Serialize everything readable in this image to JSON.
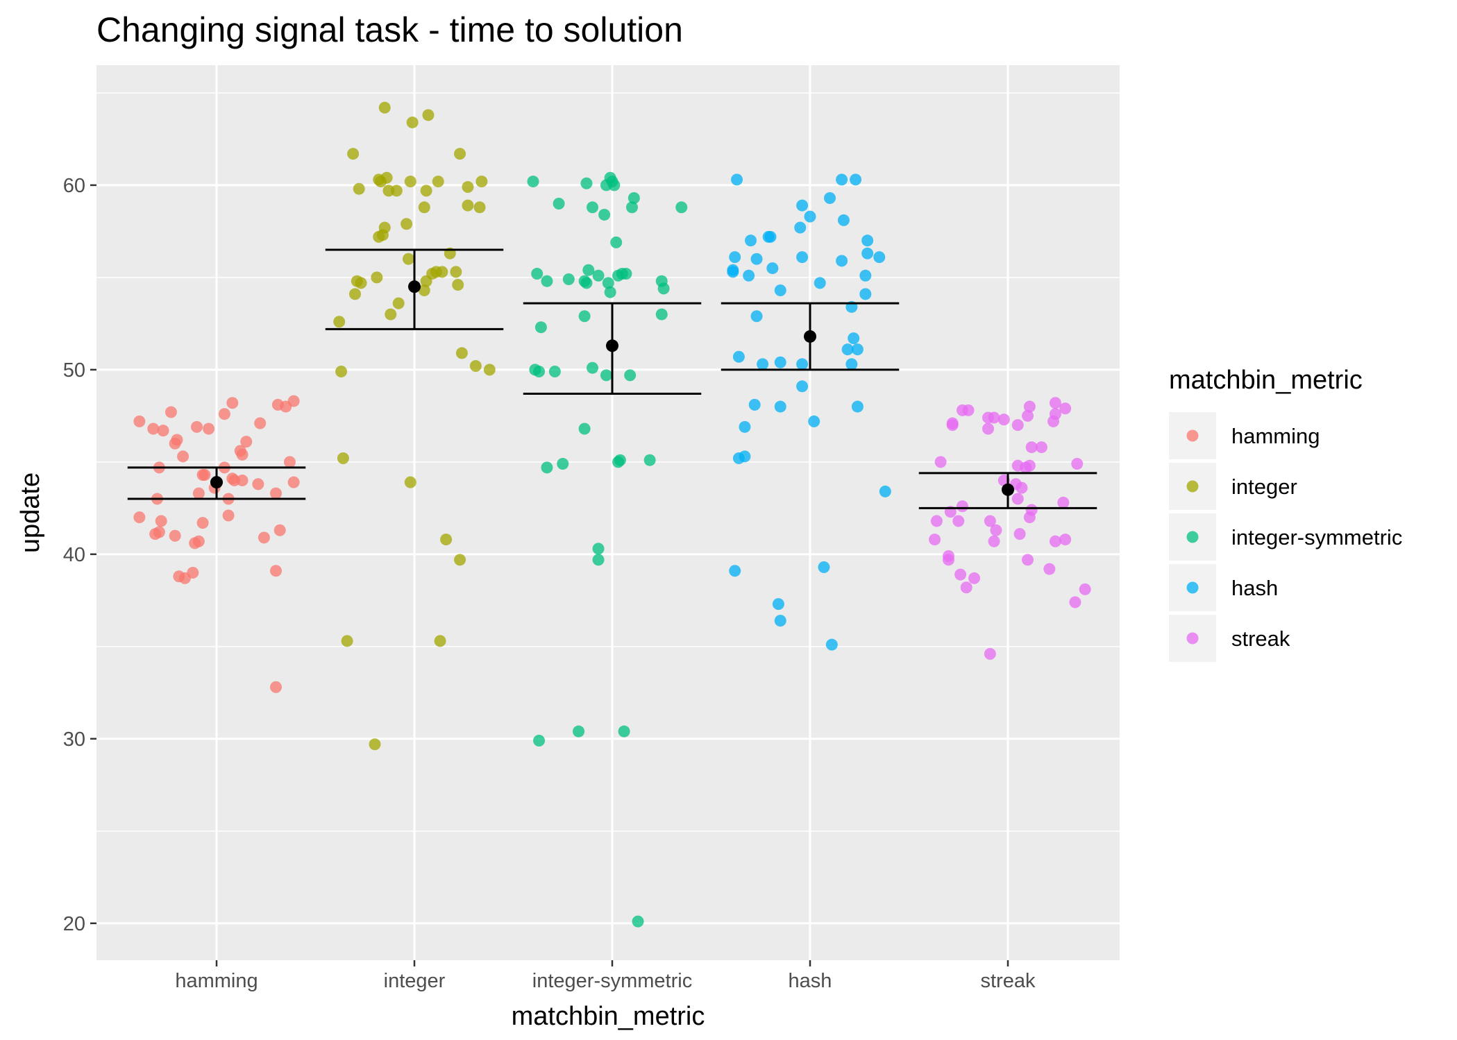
{
  "chart_data": {
    "type": "scatter",
    "title": "Changing signal task - time to solution",
    "xlabel": "matchbin_metric",
    "ylabel": "update",
    "categories": [
      "hamming",
      "integer",
      "integer-symmetric",
      "hash",
      "streak"
    ],
    "ylim": [
      18,
      66.5
    ],
    "yticks": [
      20,
      30,
      40,
      50,
      60
    ],
    "grid": true,
    "legend": {
      "title": "matchbin_metric",
      "placement": "right",
      "entries": [
        "hamming",
        "integer",
        "integer-symmetric",
        "hash",
        "streak"
      ]
    },
    "colors": {
      "hamming": "#F8766D",
      "integer": "#A3A500",
      "integer-symmetric": "#00BF7D",
      "hash": "#00B0F6",
      "streak": "#E76BF3",
      "panel": "#EBEBEB",
      "summary": "#000000"
    },
    "series": [
      {
        "name": "hamming",
        "mean": 43.9,
        "ci": [
          43.0,
          44.7
        ],
        "points": [
          [
            -0.39,
            47.2
          ],
          [
            -0.32,
            46.8
          ],
          [
            -0.27,
            46.7
          ],
          [
            -0.23,
            47.7
          ],
          [
            -0.2,
            46.2
          ],
          [
            -0.21,
            46.0
          ],
          [
            -0.17,
            45.3
          ],
          [
            -0.1,
            46.9
          ],
          [
            -0.04,
            46.8
          ],
          [
            0.04,
            47.6
          ],
          [
            0.08,
            48.2
          ],
          [
            0.22,
            47.1
          ],
          [
            0.31,
            48.1
          ],
          [
            0.35,
            48.0
          ],
          [
            0.39,
            48.3
          ],
          [
            0.15,
            46.1
          ],
          [
            0.12,
            45.6
          ],
          [
            0.13,
            45.4
          ],
          [
            -0.29,
            44.7
          ],
          [
            -0.07,
            44.3
          ],
          [
            -0.06,
            44.3
          ],
          [
            0.04,
            44.7
          ],
          [
            0.08,
            44.1
          ],
          [
            0.09,
            44.0
          ],
          [
            0.13,
            44.0
          ],
          [
            0.21,
            43.8
          ],
          [
            0.37,
            45.0
          ],
          [
            0.39,
            43.9
          ],
          [
            -0.01,
            43.6
          ],
          [
            -0.09,
            43.3
          ],
          [
            -0.3,
            43.0
          ],
          [
            0.06,
            43.0
          ],
          [
            0.3,
            43.3
          ],
          [
            -0.39,
            42.0
          ],
          [
            -0.28,
            41.8
          ],
          [
            -0.29,
            41.2
          ],
          [
            -0.21,
            41.0
          ],
          [
            -0.31,
            41.1
          ],
          [
            -0.07,
            41.7
          ],
          [
            0.06,
            42.1
          ],
          [
            0.32,
            41.3
          ],
          [
            0.24,
            40.9
          ],
          [
            -0.09,
            40.7
          ],
          [
            -0.11,
            40.6
          ],
          [
            -0.19,
            38.8
          ],
          [
            -0.16,
            38.7
          ],
          [
            -0.12,
            39.0
          ],
          [
            0.3,
            39.1
          ],
          [
            0.3,
            32.8
          ]
        ]
      },
      {
        "name": "integer",
        "mean": 54.5,
        "ci": [
          52.2,
          56.5
        ],
        "points": [
          [
            -0.31,
            61.7
          ],
          [
            -0.15,
            64.2
          ],
          [
            -0.01,
            63.4
          ],
          [
            0.07,
            63.8
          ],
          [
            0.23,
            61.7
          ],
          [
            -0.18,
            60.3
          ],
          [
            -0.17,
            60.2
          ],
          [
            -0.14,
            60.4
          ],
          [
            -0.09,
            59.7
          ],
          [
            -0.13,
            59.7
          ],
          [
            -0.02,
            60.2
          ],
          [
            0.06,
            59.7
          ],
          [
            0.12,
            60.2
          ],
          [
            0.27,
            59.9
          ],
          [
            0.34,
            60.2
          ],
          [
            -0.28,
            59.8
          ],
          [
            -0.18,
            57.2
          ],
          [
            -0.16,
            57.3
          ],
          [
            -0.15,
            57.7
          ],
          [
            -0.04,
            57.9
          ],
          [
            0.05,
            58.8
          ],
          [
            0.27,
            58.9
          ],
          [
            0.33,
            58.8
          ],
          [
            -0.03,
            56.0
          ],
          [
            0.18,
            56.3
          ],
          [
            -0.29,
            54.8
          ],
          [
            -0.27,
            54.7
          ],
          [
            -0.19,
            55.0
          ],
          [
            0.06,
            54.8
          ],
          [
            0.09,
            55.2
          ],
          [
            0.11,
            55.3
          ],
          [
            0.14,
            55.3
          ],
          [
            0.21,
            55.3
          ],
          [
            0.22,
            54.6
          ],
          [
            0.05,
            54.3
          ],
          [
            -0.3,
            54.1
          ],
          [
            -0.08,
            53.6
          ],
          [
            -0.12,
            53.0
          ],
          [
            -0.38,
            52.6
          ],
          [
            0.24,
            50.9
          ],
          [
            0.31,
            50.2
          ],
          [
            0.38,
            50.0
          ],
          [
            -0.37,
            49.9
          ],
          [
            -0.36,
            45.2
          ],
          [
            -0.02,
            43.9
          ],
          [
            0.16,
            40.8
          ],
          [
            0.23,
            39.7
          ],
          [
            -0.34,
            35.3
          ],
          [
            0.13,
            35.3
          ],
          [
            -0.2,
            29.7
          ]
        ]
      },
      {
        "name": "integer-symmetric",
        "mean": 51.3,
        "ci": [
          48.7,
          53.6
        ],
        "points": [
          [
            -0.4,
            60.2
          ],
          [
            -0.27,
            59.0
          ],
          [
            -0.13,
            60.1
          ],
          [
            -0.03,
            60.0
          ],
          [
            -0.01,
            60.4
          ],
          [
            0.0,
            60.2
          ],
          [
            0.01,
            60.0
          ],
          [
            0.11,
            59.3
          ],
          [
            0.1,
            58.8
          ],
          [
            -0.1,
            58.8
          ],
          [
            -0.04,
            58.4
          ],
          [
            0.35,
            58.8
          ],
          [
            0.02,
            56.9
          ],
          [
            -0.38,
            55.2
          ],
          [
            -0.33,
            54.8
          ],
          [
            -0.22,
            54.9
          ],
          [
            -0.12,
            55.4
          ],
          [
            -0.07,
            55.1
          ],
          [
            0.03,
            55.1
          ],
          [
            0.05,
            55.2
          ],
          [
            0.07,
            55.2
          ],
          [
            0.25,
            54.8
          ],
          [
            0.26,
            54.4
          ],
          [
            -0.14,
            54.8
          ],
          [
            -0.13,
            54.7
          ],
          [
            -0.02,
            54.7
          ],
          [
            -0.01,
            54.2
          ],
          [
            -0.14,
            52.9
          ],
          [
            0.25,
            53.0
          ],
          [
            -0.36,
            52.3
          ],
          [
            -0.39,
            50.0
          ],
          [
            -0.37,
            49.9
          ],
          [
            -0.29,
            49.9
          ],
          [
            -0.1,
            50.1
          ],
          [
            -0.03,
            49.7
          ],
          [
            0.09,
            49.7
          ],
          [
            -0.14,
            46.8
          ],
          [
            -0.33,
            44.7
          ],
          [
            -0.25,
            44.9
          ],
          [
            0.03,
            45.0
          ],
          [
            0.04,
            45.1
          ],
          [
            0.19,
            45.1
          ],
          [
            -0.07,
            40.3
          ],
          [
            -0.07,
            39.7
          ],
          [
            -0.37,
            29.9
          ],
          [
            -0.17,
            30.4
          ],
          [
            0.06,
            30.4
          ],
          [
            0.13,
            20.1
          ]
        ]
      },
      {
        "name": "hash",
        "mean": 51.8,
        "ci": [
          50.0,
          53.6
        ],
        "points": [
          [
            -0.37,
            60.3
          ],
          [
            0.16,
            60.3
          ],
          [
            0.23,
            60.3
          ],
          [
            0.1,
            59.3
          ],
          [
            -0.04,
            58.9
          ],
          [
            0.0,
            58.3
          ],
          [
            0.17,
            58.1
          ],
          [
            -0.05,
            57.7
          ],
          [
            -0.21,
            57.2
          ],
          [
            -0.2,
            57.2
          ],
          [
            -0.3,
            57.0
          ],
          [
            0.29,
            57.0
          ],
          [
            0.29,
            56.3
          ],
          [
            -0.38,
            56.1
          ],
          [
            -0.27,
            56.0
          ],
          [
            -0.04,
            56.1
          ],
          [
            0.16,
            55.9
          ],
          [
            0.35,
            56.1
          ],
          [
            -0.39,
            55.4
          ],
          [
            -0.39,
            55.3
          ],
          [
            -0.19,
            55.5
          ],
          [
            -0.31,
            55.1
          ],
          [
            0.28,
            55.1
          ],
          [
            0.05,
            54.7
          ],
          [
            -0.15,
            54.3
          ],
          [
            0.28,
            54.1
          ],
          [
            0.21,
            53.4
          ],
          [
            -0.27,
            52.9
          ],
          [
            0.22,
            51.7
          ],
          [
            0.24,
            51.1
          ],
          [
            0.19,
            51.1
          ],
          [
            -0.36,
            50.7
          ],
          [
            -0.24,
            50.3
          ],
          [
            -0.15,
            50.4
          ],
          [
            -0.04,
            50.3
          ],
          [
            0.21,
            50.3
          ],
          [
            -0.04,
            49.1
          ],
          [
            -0.28,
            48.1
          ],
          [
            -0.15,
            48.0
          ],
          [
            0.24,
            48.0
          ],
          [
            0.02,
            47.2
          ],
          [
            -0.33,
            46.9
          ],
          [
            -0.36,
            45.2
          ],
          [
            -0.33,
            45.3
          ],
          [
            0.38,
            43.4
          ],
          [
            -0.38,
            39.1
          ],
          [
            0.07,
            39.3
          ],
          [
            -0.16,
            37.3
          ],
          [
            -0.15,
            36.4
          ],
          [
            0.11,
            35.1
          ]
        ]
      },
      {
        "name": "streak",
        "mean": 43.5,
        "ci": [
          42.5,
          44.4
        ],
        "points": [
          [
            -0.28,
            47.0
          ],
          [
            -0.23,
            47.8
          ],
          [
            -0.28,
            47.1
          ],
          [
            -0.2,
            47.8
          ],
          [
            -0.1,
            46.8
          ],
          [
            -0.1,
            47.4
          ],
          [
            -0.07,
            47.4
          ],
          [
            -0.02,
            47.3
          ],
          [
            0.05,
            47.0
          ],
          [
            0.1,
            47.5
          ],
          [
            0.11,
            48.0
          ],
          [
            0.23,
            47.2
          ],
          [
            0.24,
            47.6
          ],
          [
            0.24,
            48.2
          ],
          [
            0.29,
            47.9
          ],
          [
            -0.34,
            45.0
          ],
          [
            0.12,
            45.8
          ],
          [
            0.17,
            45.8
          ],
          [
            0.11,
            44.8
          ],
          [
            0.09,
            44.7
          ],
          [
            0.05,
            44.8
          ],
          [
            0.35,
            44.9
          ],
          [
            -0.02,
            44.0
          ],
          [
            0.04,
            43.8
          ],
          [
            0.07,
            43.6
          ],
          [
            0.05,
            43.0
          ],
          [
            0.12,
            42.4
          ],
          [
            0.28,
            42.8
          ],
          [
            -0.29,
            42.3
          ],
          [
            -0.23,
            42.6
          ],
          [
            -0.36,
            41.8
          ],
          [
            -0.25,
            41.8
          ],
          [
            -0.09,
            41.8
          ],
          [
            0.06,
            41.1
          ],
          [
            0.11,
            42.0
          ],
          [
            -0.06,
            41.3
          ],
          [
            -0.37,
            40.8
          ],
          [
            -0.07,
            40.7
          ],
          [
            0.24,
            40.7
          ],
          [
            0.29,
            40.8
          ],
          [
            -0.3,
            39.7
          ],
          [
            -0.3,
            39.9
          ],
          [
            -0.24,
            38.9
          ],
          [
            -0.17,
            38.7
          ],
          [
            -0.21,
            38.2
          ],
          [
            0.1,
            39.7
          ],
          [
            0.21,
            39.2
          ],
          [
            0.39,
            38.1
          ],
          [
            0.34,
            37.4
          ],
          [
            -0.09,
            34.6
          ]
        ]
      }
    ]
  }
}
